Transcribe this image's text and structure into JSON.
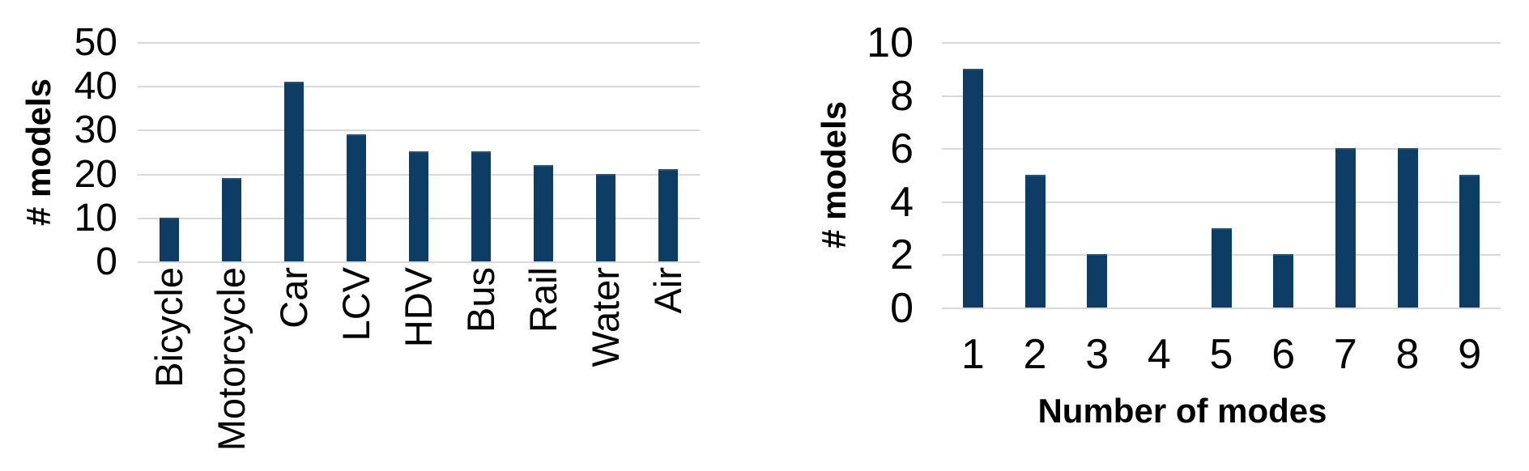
{
  "figure": {
    "background": "#ffffff"
  },
  "colors": {
    "bar": "#0d3d64",
    "bar_top_edge": "#2b5070",
    "gridline": "#d9d9d9",
    "text": "#000000"
  },
  "chart_data": [
    {
      "type": "bar",
      "title": "",
      "ylabel": "# models",
      "xlabel": "",
      "categories": [
        "Bicycle",
        "Motorcycle",
        "Car",
        "LCV",
        "HDV",
        "Bus",
        "Rail",
        "Water",
        "Air"
      ],
      "values": [
        10,
        19,
        41,
        29,
        25,
        25,
        22,
        20,
        21
      ],
      "ylim": [
        0,
        50
      ],
      "yticks": [
        0,
        10,
        20,
        30,
        40,
        50
      ],
      "grid": true,
      "legend": "none",
      "x_tick_rotation_deg": 90
    },
    {
      "type": "bar",
      "title": "",
      "ylabel": "# models",
      "xlabel": "Number of modes",
      "categories": [
        "1",
        "2",
        "3",
        "4",
        "5",
        "6",
        "7",
        "8",
        "9"
      ],
      "values": [
        9,
        5,
        2,
        0,
        3,
        2,
        6,
        6,
        5
      ],
      "ylim": [
        0,
        10
      ],
      "yticks": [
        0,
        2,
        4,
        6,
        8,
        10
      ],
      "grid": true,
      "legend": "none",
      "x_tick_rotation_deg": 0
    }
  ]
}
